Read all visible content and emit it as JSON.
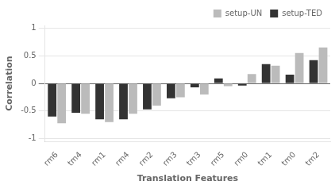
{
  "chart_data": {
    "type": "bar",
    "categories": [
      "rm6",
      "tm4",
      "rm1",
      "rm4",
      "rm2",
      "rm3",
      "tm3",
      "rm5",
      "rm0",
      "tm1",
      "tm0",
      "tm2"
    ],
    "series": [
      {
        "name": "setup-TED",
        "color": "#333333",
        "values": [
          -0.6,
          -0.53,
          -0.65,
          -0.65,
          -0.47,
          -0.27,
          -0.07,
          0.09,
          -0.04,
          0.35,
          0.16,
          0.42
        ]
      },
      {
        "name": "setup-UN",
        "color": "#bbbbbb",
        "values": [
          -0.72,
          -0.55,
          -0.7,
          -0.55,
          -0.4,
          -0.25,
          -0.2,
          -0.05,
          0.17,
          0.32,
          0.55,
          0.65
        ]
      }
    ],
    "xlabel": "Translation Features",
    "ylabel": "Correlation",
    "ylim": [
      -1.05,
      1.05
    ],
    "yticks": [
      -1,
      -0.5,
      0,
      0.5,
      1
    ],
    "grid": true,
    "legend": "upper right"
  }
}
